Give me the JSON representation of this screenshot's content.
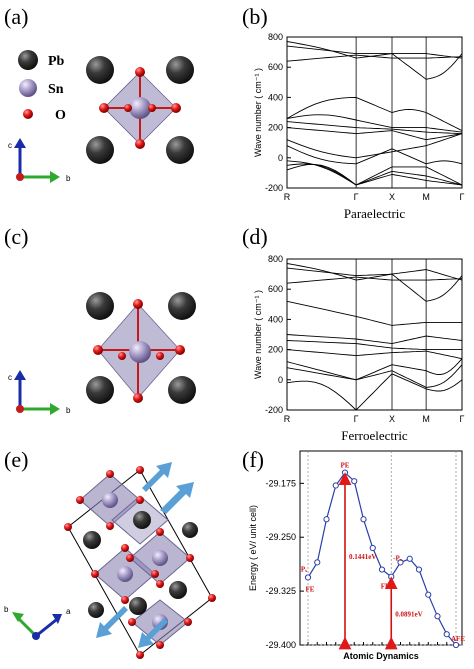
{
  "panels": {
    "a": "(a)",
    "b": "(b)",
    "c": "(c)",
    "d": "(d)",
    "e": "(e)",
    "f": "(f)"
  },
  "legend": {
    "pb": "Pb",
    "sn": "Sn",
    "o": "O"
  },
  "axes_small": {
    "c": "c",
    "b": "b",
    "a": "a",
    "origin": "0"
  },
  "chart_data": [
    {
      "type": "line",
      "title": "Paraelectric",
      "ylabel": "Wave number ( cm⁻¹ )",
      "ylim": [
        -200,
        800
      ],
      "yticks": [
        -200,
        0,
        200,
        400,
        600,
        800
      ],
      "xticks": [
        "R",
        "Γ",
        "X",
        "M",
        "Γ"
      ]
    },
    {
      "type": "line",
      "title": "Ferroelectric",
      "ylabel": "Wave number ( cm⁻¹ )",
      "ylim": [
        -200,
        800
      ],
      "yticks": [
        -200,
        0,
        200,
        400,
        600,
        800
      ],
      "xticks": [
        "R",
        "Γ",
        "X",
        "M",
        "Γ"
      ]
    },
    {
      "type": "line",
      "ylabel": "Energy ( eV/ unit cell)",
      "xlabel": "Atomic Dynamics",
      "ylim": [
        -29.4,
        -29.13
      ],
      "yticks": [
        -29.175,
        -29.25,
        -29.325,
        -29.4
      ],
      "ytick_labels": [
        "-29.175",
        "-29.250",
        "-29.325",
        "-29.400"
      ],
      "x": [
        0,
        1,
        2,
        3,
        4,
        5,
        6,
        7,
        8,
        9,
        10,
        11,
        12,
        13,
        14,
        15,
        16
      ],
      "values": [
        -29.306,
        -29.285,
        -29.225,
        -29.178,
        -29.16,
        -29.172,
        -29.225,
        -29.265,
        -29.295,
        -29.305,
        -29.285,
        -29.28,
        -29.295,
        -29.33,
        -29.36,
        -29.385,
        -29.4
      ],
      "annotations": {
        "pe": "PE",
        "px_left": "Pₓ",
        "fe_left": "FE",
        "px_right": "-Pₓ",
        "fe_right": "FE",
        "afe": "AFE",
        "barrier1": "0.1441eV",
        "barrier2": "0.0891eV"
      }
    }
  ]
}
